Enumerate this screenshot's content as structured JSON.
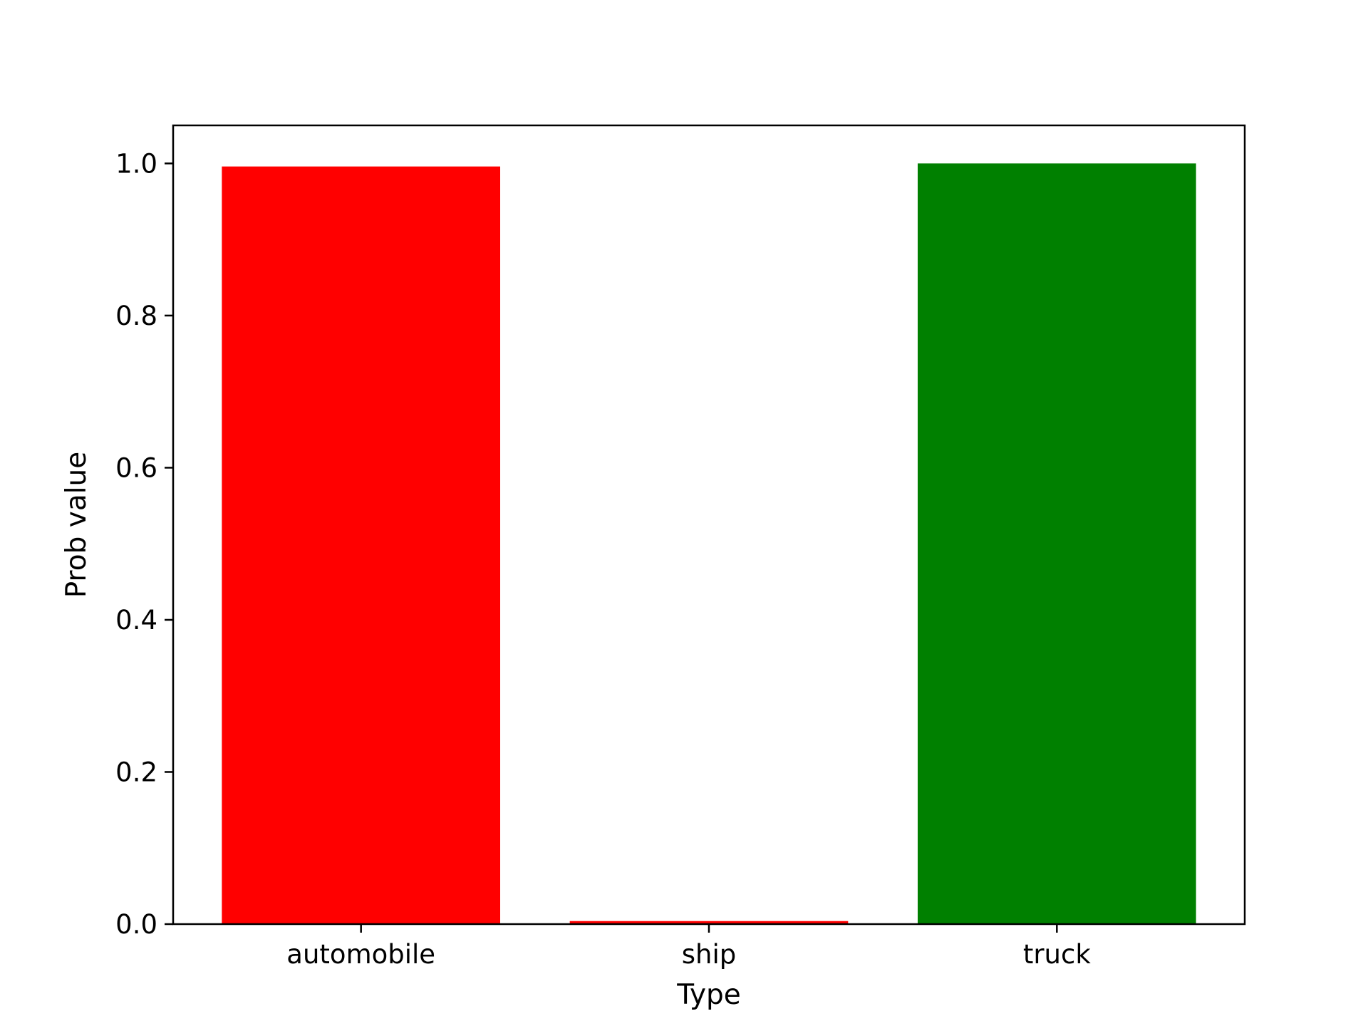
{
  "chart_data": {
    "type": "bar",
    "title": "",
    "xlabel": "Type",
    "ylabel": "Prob value",
    "categories": [
      "automobile",
      "ship",
      "truck"
    ],
    "values": [
      0.996,
      0.004,
      1.0
    ],
    "colors": [
      "#ff0000",
      "#ff0000",
      "#008000"
    ],
    "ylim": [
      0,
      1.05
    ],
    "yticks": [
      0.0,
      0.2,
      0.4,
      0.6,
      0.8,
      1.0
    ],
    "ytick_labels": [
      "0.0",
      "0.2",
      "0.4",
      "0.6",
      "0.8",
      "1.0"
    ],
    "grid": false,
    "legend": "none"
  }
}
